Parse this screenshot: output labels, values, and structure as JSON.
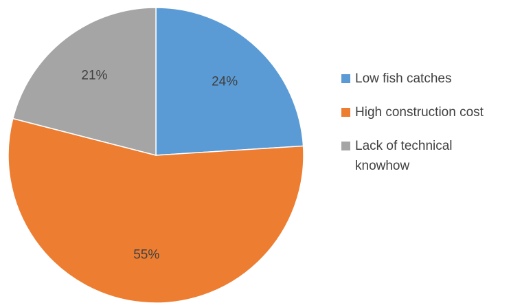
{
  "chart_data": {
    "type": "pie",
    "title": "",
    "categories": [
      "Low fish catches",
      "High construction cost",
      "Lack of technical knowhow"
    ],
    "values": [
      24,
      55,
      21
    ],
    "data_labels": [
      "24%",
      "55%",
      "21%"
    ],
    "colors": [
      "#5B9BD5",
      "#ED7D31",
      "#A5A5A5"
    ],
    "start_angle": "12 o'clock",
    "direction": "clockwise",
    "legend_position": "right"
  },
  "legend": {
    "items": [
      {
        "label": "Low fish catches",
        "color": "#5B9BD5"
      },
      {
        "label": "High construction cost",
        "color": "#ED7D31"
      },
      {
        "label": "Lack of technical knowhow",
        "color": "#A5A5A5"
      }
    ]
  }
}
